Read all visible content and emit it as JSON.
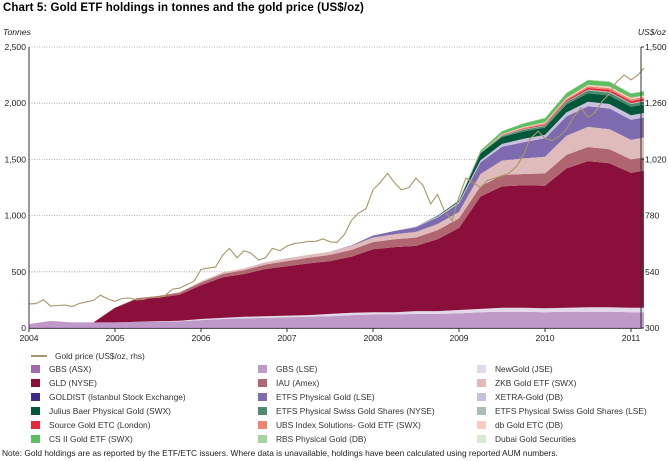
{
  "title": "Chart 5: Gold ETF holdings in tonnes and the gold price (US$/oz)",
  "note": "Note: Gold holdings are as reported by the ETF/ETC issuers. Where data is unavailable, holdings have been calculated using reported AUM numbers.",
  "chart_data": {
    "type": "area",
    "stacked": true,
    "title": "Chart 5: Gold ETF holdings in tonnes and the gold price (US$/oz)",
    "xlabel": "",
    "ylabel": "Tonnes",
    "y2label": "US$/oz",
    "ylim": [
      0,
      2500
    ],
    "y2lim": [
      300,
      1500
    ],
    "xlim": [
      2004.0,
      2011.15
    ],
    "yticks": [
      "0",
      "500",
      "1,000",
      "1,500",
      "2,000",
      "2,500"
    ],
    "ytick_values": [
      0,
      500,
      1000,
      1500,
      2000,
      2500
    ],
    "y2ticks": [
      "300",
      "540",
      "780",
      "1,020",
      "1,260",
      "1,500"
    ],
    "y2tick_values": [
      300,
      540,
      780,
      1020,
      1260,
      1500
    ],
    "xticks": [
      "2004",
      "2005",
      "2006",
      "2007",
      "2008",
      "2009",
      "2010",
      "2011"
    ],
    "xtick_values": [
      2004,
      2005,
      2006,
      2007,
      2008,
      2009,
      2010,
      2011
    ],
    "grid": "horizontal dotted",
    "legend_position": "bottom",
    "x": [
      2004.0,
      2004.25,
      2004.5,
      2004.75,
      2005.0,
      2005.25,
      2005.5,
      2005.75,
      2006.0,
      2006.25,
      2006.5,
      2006.75,
      2007.0,
      2007.25,
      2007.5,
      2007.75,
      2008.0,
      2008.25,
      2008.5,
      2008.75,
      2009.0,
      2009.25,
      2009.5,
      2009.75,
      2010.0,
      2010.25,
      2010.5,
      2010.75,
      2011.0,
      2011.15
    ],
    "series": [
      {
        "name": "GBS (ASX)",
        "color": "#a36ab0",
        "values": [
          5,
          8,
          5,
          5,
          5,
          5,
          5,
          5,
          5,
          5,
          5,
          5,
          5,
          5,
          5,
          5,
          5,
          5,
          5,
          5,
          5,
          5,
          5,
          5,
          5,
          5,
          5,
          5,
          5,
          5
        ]
      },
      {
        "name": "GBS (LSE)",
        "color": "#bf99c8",
        "values": [
          30,
          55,
          45,
          45,
          45,
          50,
          50,
          55,
          65,
          75,
          80,
          85,
          90,
          95,
          100,
          110,
          115,
          115,
          120,
          120,
          125,
          135,
          140,
          140,
          135,
          140,
          140,
          140,
          135,
          135
        ]
      },
      {
        "name": "NewGold (JSE)",
        "color": "#e2d8ea",
        "values": [
          0,
          0,
          0,
          0,
          0,
          0,
          5,
          5,
          10,
          10,
          15,
          15,
          15,
          15,
          20,
          20,
          20,
          20,
          25,
          25,
          30,
          30,
          35,
          35,
          35,
          35,
          40,
          40,
          40,
          40
        ]
      },
      {
        "name": "GLD (NYSE)",
        "color": "#8a0f3a",
        "values": [
          0,
          0,
          0,
          0,
          130,
          200,
          210,
          230,
          300,
          360,
          380,
          420,
          440,
          460,
          470,
          500,
          560,
          580,
          580,
          640,
          730,
          1000,
          1080,
          1090,
          1090,
          1240,
          1300,
          1280,
          1200,
          1220
        ]
      },
      {
        "name": "IAU (Amex)",
        "color": "#b06670",
        "values": [
          0,
          0,
          0,
          0,
          0,
          10,
          15,
          20,
          25,
          30,
          35,
          40,
          45,
          50,
          55,
          60,
          65,
          70,
          75,
          80,
          85,
          90,
          100,
          100,
          110,
          120,
          125,
          125,
          120,
          120
        ]
      },
      {
        "name": "ZKB Gold ETF (SWX)",
        "color": "#dfbbbb",
        "values": [
          0,
          0,
          0,
          0,
          0,
          0,
          0,
          5,
          10,
          15,
          15,
          20,
          25,
          25,
          30,
          35,
          40,
          45,
          50,
          55,
          60,
          110,
          130,
          140,
          150,
          170,
          180,
          180,
          175,
          175
        ]
      },
      {
        "name": "GOLDIST (Istanbul Stock Exchange)",
        "color": "#3d2a8a",
        "values": [
          0,
          0,
          0,
          0,
          0,
          0,
          0,
          0,
          0,
          0,
          0,
          0,
          0,
          0,
          0,
          0,
          3,
          3,
          3,
          3,
          3,
          3,
          3,
          3,
          3,
          3,
          3,
          3,
          3,
          3
        ]
      },
      {
        "name": "ETFS Physical Gold (LSE)",
        "color": "#7e6aae",
        "values": [
          0,
          0,
          0,
          0,
          0,
          0,
          0,
          0,
          0,
          0,
          0,
          0,
          0,
          0,
          0,
          5,
          15,
          25,
          40,
          55,
          70,
          100,
          120,
          140,
          160,
          170,
          180,
          180,
          175,
          175
        ]
      },
      {
        "name": "XETRA-Gold (DB)",
        "color": "#c9c0de",
        "values": [
          0,
          0,
          0,
          0,
          0,
          0,
          0,
          0,
          0,
          0,
          0,
          0,
          0,
          0,
          0,
          0,
          0,
          0,
          5,
          10,
          15,
          20,
          25,
          30,
          30,
          35,
          40,
          40,
          40,
          40
        ]
      },
      {
        "name": "Julius Baer Physical Gold (SWX)",
        "color": "#00583a",
        "values": [
          0,
          0,
          0,
          0,
          0,
          0,
          0,
          0,
          0,
          0,
          0,
          0,
          0,
          0,
          0,
          0,
          0,
          0,
          0,
          5,
          10,
          60,
          60,
          65,
          65,
          70,
          75,
          75,
          75,
          75
        ]
      },
      {
        "name": "ETFS Physical Swiss Gold Shares (NYSE)",
        "color": "#4e8a6e",
        "values": [
          0,
          0,
          0,
          0,
          0,
          0,
          0,
          0,
          0,
          0,
          0,
          0,
          0,
          0,
          0,
          0,
          0,
          0,
          0,
          0,
          0,
          5,
          10,
          15,
          15,
          20,
          25,
          25,
          25,
          25
        ]
      },
      {
        "name": "ETFS Physical Swiss Gold Shares (LSE)",
        "color": "#a8c0b4",
        "values": [
          0,
          0,
          0,
          0,
          0,
          0,
          0,
          0,
          0,
          0,
          0,
          0,
          0,
          0,
          0,
          0,
          0,
          0,
          0,
          0,
          0,
          0,
          5,
          5,
          5,
          5,
          8,
          8,
          8,
          8
        ]
      },
      {
        "name": "Source Gold ETC (London)",
        "color": "#e8263c",
        "values": [
          0,
          0,
          0,
          0,
          0,
          0,
          0,
          0,
          0,
          0,
          0,
          0,
          0,
          0,
          0,
          0,
          0,
          0,
          0,
          0,
          0,
          0,
          3,
          5,
          8,
          12,
          15,
          18,
          18,
          18
        ]
      },
      {
        "name": "UBS Index Solutions- Gold ETF (SWX)",
        "color": "#ec8472",
        "values": [
          0,
          0,
          0,
          0,
          0,
          0,
          0,
          0,
          0,
          0,
          0,
          0,
          0,
          0,
          0,
          0,
          0,
          0,
          0,
          0,
          0,
          3,
          5,
          8,
          10,
          12,
          14,
          15,
          15,
          15
        ]
      },
      {
        "name": "db Gold ETC (DB)",
        "color": "#f7cbbf",
        "values": [
          0,
          0,
          0,
          0,
          0,
          0,
          0,
          0,
          0,
          0,
          0,
          0,
          0,
          0,
          0,
          0,
          0,
          0,
          0,
          0,
          0,
          3,
          5,
          8,
          10,
          12,
          14,
          15,
          15,
          15
        ]
      },
      {
        "name": "CS II Gold ETF (SWX)",
        "color": "#5cbf62",
        "values": [
          0,
          0,
          0,
          0,
          0,
          0,
          0,
          0,
          0,
          0,
          0,
          0,
          0,
          0,
          0,
          0,
          0,
          0,
          0,
          0,
          5,
          15,
          25,
          30,
          35,
          40,
          40,
          40,
          35,
          35
        ]
      },
      {
        "name": "RBS Physical Gold (DB)",
        "color": "#a5d49e",
        "values": [
          0,
          0,
          0,
          0,
          0,
          0,
          0,
          0,
          0,
          0,
          0,
          0,
          0,
          0,
          0,
          0,
          0,
          0,
          0,
          0,
          0,
          0,
          0,
          2,
          3,
          4,
          5,
          5,
          5,
          5
        ]
      },
      {
        "name": "Dubai Gold Securities",
        "color": "#d9ead3",
        "values": [
          0,
          0,
          0,
          0,
          0,
          0,
          0,
          0,
          0,
          0,
          0,
          0,
          0,
          0,
          0,
          0,
          0,
          0,
          0,
          0,
          0,
          0,
          1,
          1,
          1,
          1,
          1,
          1,
          1,
          1
        ]
      }
    ],
    "line_series": {
      "name": "Gold price (US$/oz, rhs)",
      "axis": "right",
      "color": "#a8956a",
      "x": [
        2004.0,
        2004.08,
        2004.17,
        2004.25,
        2004.33,
        2004.42,
        2004.5,
        2004.58,
        2004.67,
        2004.75,
        2004.83,
        2004.92,
        2005.0,
        2005.08,
        2005.17,
        2005.25,
        2005.33,
        2005.42,
        2005.5,
        2005.58,
        2005.67,
        2005.75,
        2005.83,
        2005.92,
        2006.0,
        2006.08,
        2006.17,
        2006.25,
        2006.33,
        2006.42,
        2006.5,
        2006.58,
        2006.67,
        2006.75,
        2006.83,
        2006.92,
        2007.0,
        2007.08,
        2007.17,
        2007.25,
        2007.33,
        2007.42,
        2007.5,
        2007.58,
        2007.67,
        2007.75,
        2007.83,
        2007.92,
        2008.0,
        2008.08,
        2008.17,
        2008.25,
        2008.33,
        2008.42,
        2008.5,
        2008.58,
        2008.67,
        2008.75,
        2008.83,
        2008.92,
        2009.0,
        2009.08,
        2009.17,
        2009.25,
        2009.33,
        2009.42,
        2009.5,
        2009.58,
        2009.67,
        2009.75,
        2009.83,
        2009.92,
        2010.0,
        2010.08,
        2010.17,
        2010.25,
        2010.33,
        2010.42,
        2010.5,
        2010.58,
        2010.67,
        2010.75,
        2010.83,
        2010.92,
        2011.0,
        2011.08,
        2011.15
      ],
      "values": [
        403,
        404,
        420,
        394,
        396,
        398,
        392,
        404,
        412,
        418,
        440,
        424,
        414,
        426,
        428,
        420,
        422,
        432,
        430,
        438,
        466,
        470,
        484,
        500,
        550,
        556,
        560,
        610,
        640,
        600,
        630,
        620,
        590,
        600,
        640,
        630,
        650,
        660,
        665,
        670,
        670,
        680,
        668,
        665,
        700,
        760,
        790,
        810,
        890,
        920,
        960,
        920,
        890,
        900,
        940,
        910,
        830,
        870,
        800,
        760,
        860,
        940,
        920,
        900,
        930,
        940,
        950,
        960,
        990,
        1040,
        1110,
        1140,
        1110,
        1100,
        1120,
        1150,
        1200,
        1240,
        1200,
        1220,
        1270,
        1300,
        1350,
        1380,
        1360,
        1380,
        1410
      ]
    }
  }
}
